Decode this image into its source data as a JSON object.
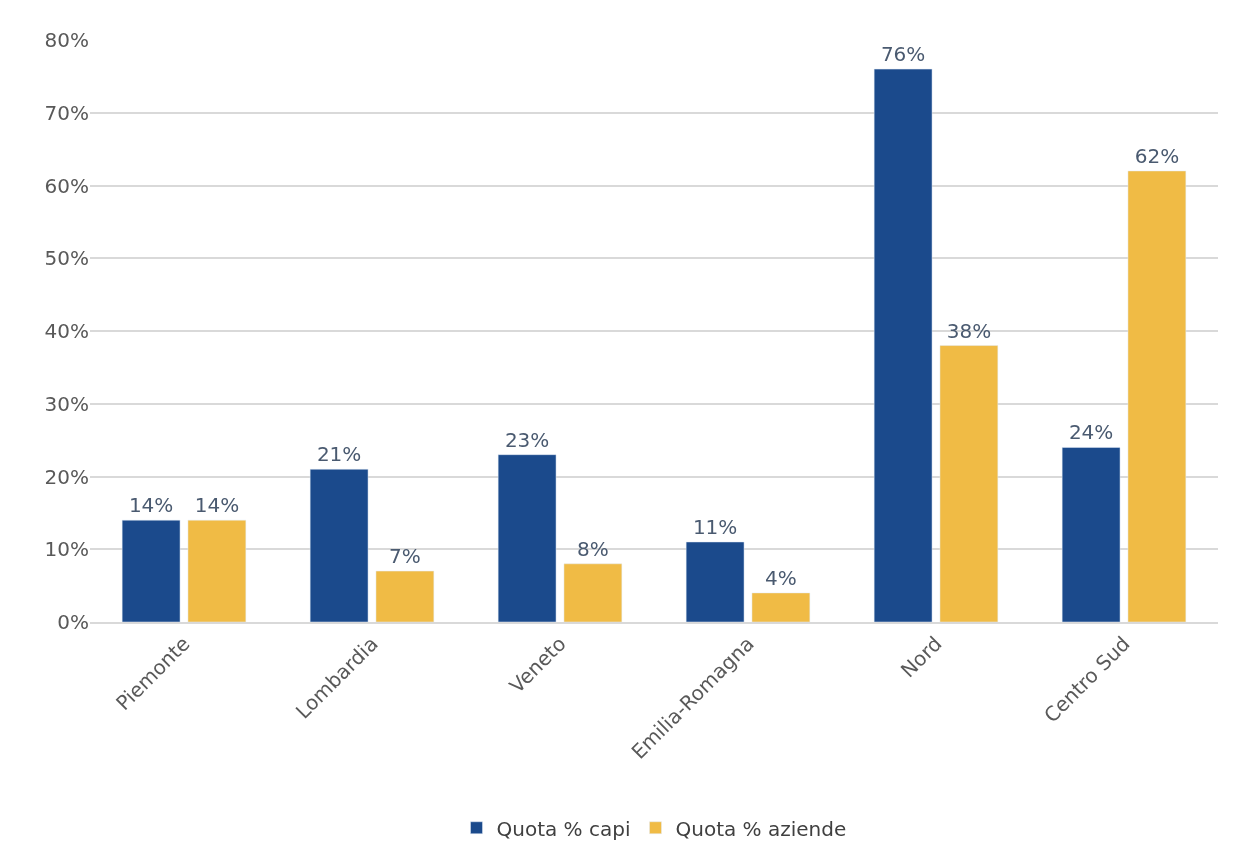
{
  "chart_data": {
    "type": "bar",
    "categories": [
      "Piemonte",
      "Lombardia",
      "Veneto",
      "Emilia-Romagna",
      "Nord",
      "Centro Sud"
    ],
    "series": [
      {
        "name": "Quota % capi",
        "color": "#1b4a8c",
        "values": [
          14,
          21,
          23,
          11,
          76,
          24
        ],
        "value_labels": [
          "14%",
          "21%",
          "23%",
          "11%",
          "76%",
          "24%"
        ]
      },
      {
        "name": "Quota % aziende",
        "color": "#f0bb45",
        "values": [
          14,
          7,
          8,
          4,
          38,
          62
        ],
        "value_labels": [
          "14%",
          "7%",
          "8%",
          "4%",
          "38%",
          "62%"
        ]
      }
    ],
    "ylim": [
      0,
      80
    ],
    "yticks": [
      {
        "value": 0,
        "label": "0%"
      },
      {
        "value": 10,
        "label": "10%"
      },
      {
        "value": 20,
        "label": "20%"
      },
      {
        "value": 30,
        "label": "30%"
      },
      {
        "value": 40,
        "label": "40%"
      },
      {
        "value": 50,
        "label": "50%"
      },
      {
        "value": 60,
        "label": "60%"
      },
      {
        "value": 70,
        "label": "70%"
      },
      {
        "value": 80,
        "label": "80%"
      }
    ],
    "grid": "y",
    "legend": "bottom"
  }
}
